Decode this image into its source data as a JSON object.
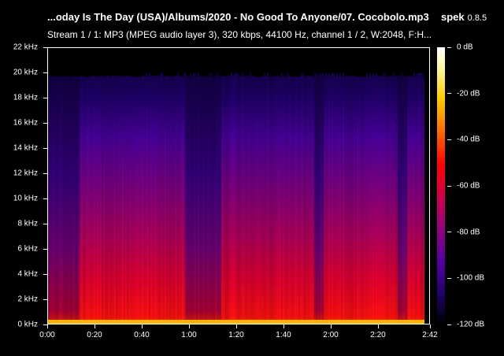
{
  "header": {
    "title": "...oday Is The Day (USA)/Albums/2020 - No Good To Anyone/07. Cocobolo.mp3",
    "info": "Stream 1 / 1: MP3 (MPEG audio layer 3), 320 kbps, 44100 Hz, channel 1 / 2, W:2048, F:H..."
  },
  "app": {
    "name": "spek",
    "version": "0.8.5"
  },
  "chart_data": {
    "type": "heatmap",
    "ylabel_ticks": [
      "0 kHz",
      "2 kHz",
      "4 kHz",
      "6 kHz",
      "8 kHz",
      "10 kHz",
      "12 kHz",
      "14 kHz",
      "16 kHz",
      "18 kHz",
      "20 kHz",
      "22 kHz"
    ],
    "xlabel_ticks": [
      "0:00",
      "0:20",
      "0:40",
      "1:00",
      "1:20",
      "1:40",
      "2:00",
      "2:20",
      "2:42"
    ],
    "x_tick_seconds": [
      0,
      20,
      40,
      60,
      80,
      100,
      120,
      140,
      162
    ],
    "duration_seconds": 162,
    "ylim_khz": [
      0,
      22
    ],
    "colorbar_ticks": [
      "0 dB",
      "-20 dB",
      "-40 dB",
      "-60 dB",
      "-80 dB",
      "-100 dB",
      "-120 dB"
    ],
    "colorbar_range_db": [
      0,
      -120
    ],
    "cutoff_khz_typical": 19.8,
    "cutoff_khz_peak": 20,
    "colors": {
      "background": "#000000",
      "low": "#1c0060",
      "mid": "#900080",
      "high": "#ff0000",
      "peak": "#ffd000"
    }
  }
}
